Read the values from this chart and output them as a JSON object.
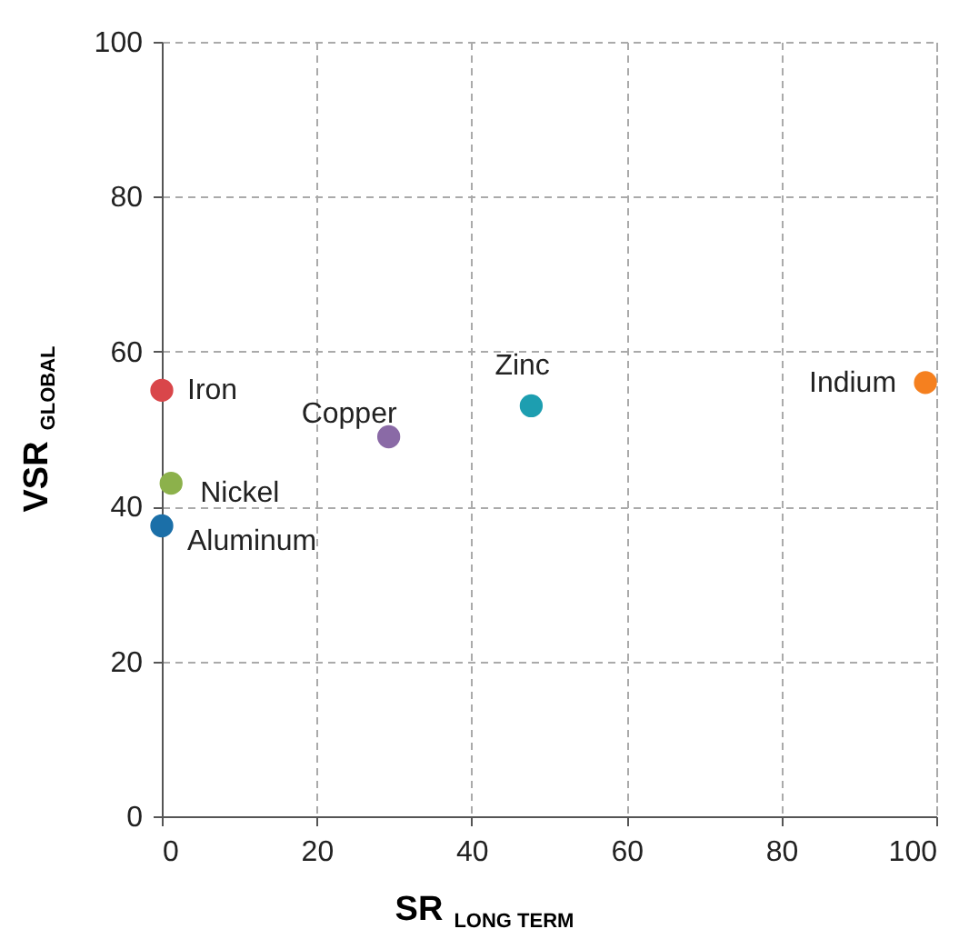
{
  "chart_data": {
    "type": "scatter",
    "xlabel": "SR$_{LONG TERM}$",
    "ylabel": "VSR$_{GLOBAL}$",
    "xlim": [
      0,
      100
    ],
    "ylim": [
      0,
      100
    ],
    "xticks": [
      0,
      20,
      40,
      60,
      80,
      100
    ],
    "yticks": [
      0,
      20,
      40,
      60,
      80,
      100
    ],
    "grid": true,
    "legend": false,
    "marker": "circle",
    "series": [
      {
        "name": "Iron",
        "color": "#d9464a",
        "x": [
          0
        ],
        "values": [
          55
        ]
      },
      {
        "name": "Nickel",
        "color": "#8cb14b",
        "x": [
          1.2
        ],
        "values": [
          43
        ]
      },
      {
        "name": "Aluminum",
        "color": "#1b6fa8",
        "x": [
          0
        ],
        "values": [
          37.5
        ]
      },
      {
        "name": "Copper",
        "color": "#8a6aa6",
        "x": [
          29.3
        ],
        "values": [
          49
        ]
      },
      {
        "name": "Zinc",
        "color": "#1d9eb0",
        "x": [
          47.7
        ],
        "values": [
          53
        ]
      },
      {
        "name": "Indium",
        "color": "#f5801f",
        "x": [
          98.6
        ],
        "values": [
          56
        ]
      }
    ]
  }
}
